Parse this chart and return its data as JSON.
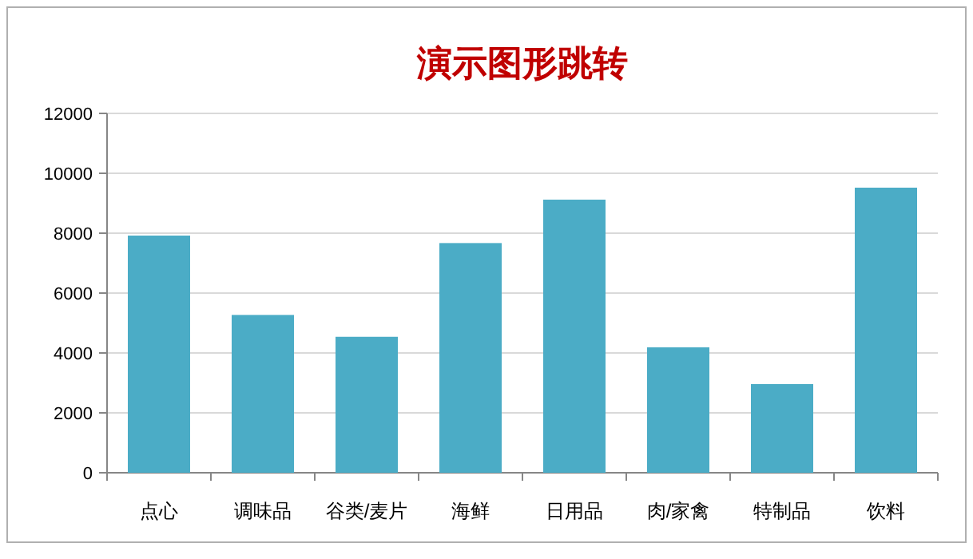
{
  "chart_data": {
    "type": "bar",
    "title": "演示图形跳转",
    "categories": [
      "点心",
      "调味品",
      "谷类/麦片",
      "海鲜",
      "日用品",
      "肉/家禽",
      "特制品",
      "饮料"
    ],
    "values": [
      7920,
      5270,
      4540,
      7670,
      9120,
      4190,
      2960,
      9520
    ],
    "color": "#4bacc6",
    "ylim": [
      0,
      12000
    ],
    "yticks": [
      0,
      2000,
      4000,
      6000,
      8000,
      10000,
      12000
    ],
    "grid": "y"
  }
}
